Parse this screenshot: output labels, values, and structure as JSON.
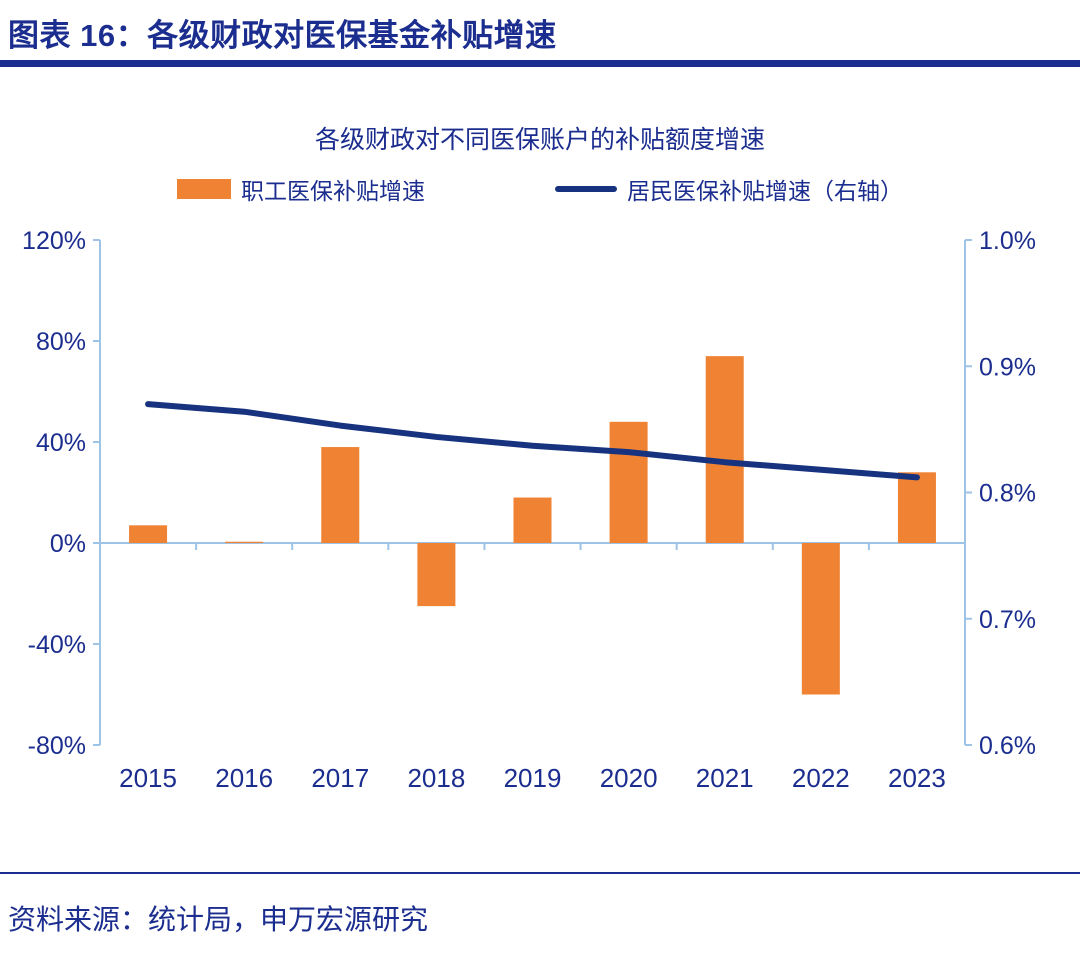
{
  "header": {
    "title": "图表 16：各级财政对医保基金补贴增速"
  },
  "chart": {
    "title": "各级财政对不同医保账户的补贴额度增速",
    "legend": [
      {
        "label": "职工医保补贴增速",
        "type": "bar",
        "color": "#EF8233"
      },
      {
        "label": "居民医保补贴增速（右轴）",
        "type": "line",
        "color": "#17337F"
      }
    ]
  },
  "chart_data": {
    "type": "bar+line combo",
    "title": "各级财政对不同医保账户的补贴额度增速",
    "categories": [
      "2015",
      "2016",
      "2017",
      "2018",
      "2019",
      "2020",
      "2021",
      "2022",
      "2023"
    ],
    "series": [
      {
        "name": "职工医保补贴增速",
        "type": "bar",
        "axis": "left",
        "unit": "%",
        "values": [
          7,
          0.5,
          38,
          -25,
          18,
          48,
          74,
          -60,
          28
        ]
      },
      {
        "name": "居民医保补贴增速（右轴）",
        "type": "line",
        "axis": "right",
        "unit": "%",
        "values": [
          0.87,
          0.864,
          0.853,
          0.844,
          0.837,
          0.832,
          0.824,
          0.818,
          0.812
        ]
      }
    ],
    "left_axis": {
      "ticks": [
        "120%",
        "80%",
        "40%",
        "0%",
        "-40%",
        "-80%"
      ],
      "min": -80,
      "max": 120
    },
    "right_axis": {
      "ticks": [
        "1.0%",
        "0.9%",
        "0.8%",
        "0.7%",
        "0.6%"
      ],
      "min": 0.6,
      "max": 1.0
    },
    "legend_position": "top",
    "grid": false
  },
  "footer": {
    "source": "资料来源：统计局，申万宏源研究"
  },
  "colors": {
    "navy": "#1B2D8E",
    "line": "#17337F",
    "orange": "#EF8233",
    "axis": "#9DC3E6"
  }
}
